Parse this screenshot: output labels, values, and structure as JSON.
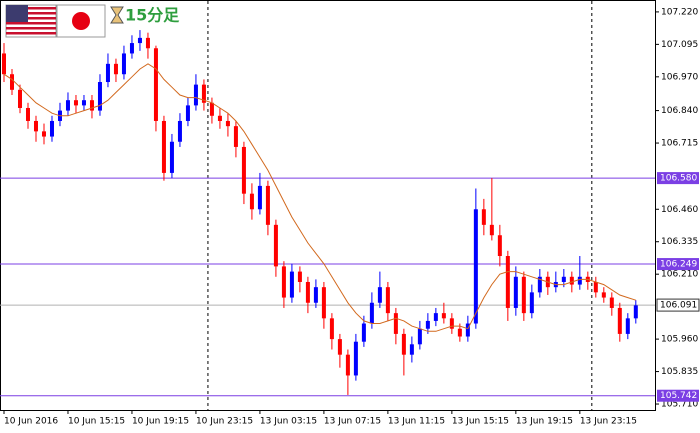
{
  "chart_data": {
    "type": "candlestick",
    "timeframe": "15分足",
    "xticks": [
      {
        "value": 0,
        "label": "10 Jun 2016"
      },
      {
        "value": 8,
        "label": "10 Jun 15:15"
      },
      {
        "value": 16,
        "label": "10 Jun 19:15"
      },
      {
        "value": 24,
        "label": "10 Jun 23:15"
      },
      {
        "value": 32,
        "label": "13 Jun 03:15"
      },
      {
        "value": 40,
        "label": "13 Jun 07:15"
      },
      {
        "value": 48,
        "label": "13 Jun 11:15"
      },
      {
        "value": 56,
        "label": "13 Jun 15:15"
      },
      {
        "value": 64,
        "label": "13 Jun 19:15"
      },
      {
        "value": 72,
        "label": "13 Jun 23:15"
      }
    ],
    "xlim": [
      -0.5,
      81.4
    ],
    "separators": [
      25.5,
      73.5
    ],
    "ylim": [
      105.687,
      107.262
    ],
    "yticks": [
      {
        "value": 107.22,
        "label": "107.220"
      },
      {
        "value": 107.095,
        "label": "107.095"
      },
      {
        "value": 106.97,
        "label": "106.970"
      },
      {
        "value": 106.84,
        "label": "106.840"
      },
      {
        "value": 106.715,
        "label": "106.715"
      },
      {
        "value": 106.46,
        "label": "106.460"
      },
      {
        "value": 106.335,
        "label": "106.335"
      },
      {
        "value": 106.21,
        "label": "106.210"
      },
      {
        "value": 105.96,
        "label": "105.960"
      },
      {
        "value": 105.835,
        "label": "105.835"
      },
      {
        "value": 105.71,
        "label": "105.710"
      }
    ],
    "levels": [
      {
        "value": 106.58,
        "label": "106.580"
      },
      {
        "value": 106.249,
        "label": "106.249"
      },
      {
        "value": 105.742,
        "label": "105.742"
      }
    ],
    "level_color": "#7b3fe4",
    "current_price": {
      "value": 106.091,
      "label": "106.091"
    },
    "up_color": "#0000ff",
    "down_color": "#ff0000",
    "ma_color": "#d2691e",
    "open": [
      107.06,
      106.98,
      106.92,
      106.85,
      106.8,
      106.76,
      106.74,
      106.8,
      106.84,
      106.88,
      106.86,
      106.88,
      106.84,
      106.95,
      107.02,
      106.98,
      107.06,
      107.1,
      107.12,
      107.08,
      106.8,
      106.6,
      106.72,
      106.8,
      106.86,
      106.94,
      106.87,
      106.82,
      106.8,
      106.78,
      106.7,
      106.52,
      106.46,
      106.55,
      106.4,
      106.24,
      106.12,
      106.22,
      106.18,
      106.1,
      106.16,
      106.04,
      105.96,
      105.9,
      105.82,
      105.95,
      106.02,
      106.1,
      106.16,
      106.06,
      105.98,
      105.9,
      105.94,
      106.0,
      106.03,
      106.06,
      106.04,
      106.0,
      105.97,
      106.02,
      106.46,
      106.4,
      106.36,
      106.28,
      106.08,
      106.2,
      106.06,
      106.14,
      106.2,
      106.16,
      106.18,
      106.2,
      106.17,
      106.2,
      106.18,
      106.14,
      106.12,
      106.08,
      105.98,
      106.04
    ],
    "high": [
      107.1,
      107.0,
      106.94,
      106.87,
      106.82,
      106.79,
      106.82,
      106.87,
      106.91,
      106.9,
      106.9,
      106.9,
      106.98,
      107.06,
      107.04,
      107.09,
      107.13,
      107.15,
      107.14,
      107.09,
      106.82,
      106.75,
      106.83,
      106.89,
      106.98,
      106.96,
      106.89,
      106.85,
      106.83,
      106.8,
      106.72,
      106.56,
      106.6,
      106.57,
      106.42,
      106.26,
      106.25,
      106.24,
      106.2,
      106.19,
      106.18,
      106.06,
      105.98,
      105.92,
      105.98,
      106.05,
      106.14,
      106.22,
      106.18,
      106.08,
      106.0,
      105.97,
      106.03,
      106.06,
      106.08,
      106.1,
      106.06,
      106.02,
      106.05,
      106.54,
      106.5,
      106.58,
      106.4,
      106.3,
      106.24,
      106.22,
      106.17,
      106.23,
      106.22,
      106.22,
      106.23,
      106.22,
      106.28,
      106.22,
      106.2,
      106.16,
      106.14,
      106.1,
      106.06,
      106.11
    ],
    "low": [
      106.95,
      106.9,
      106.83,
      106.77,
      106.72,
      106.71,
      106.72,
      106.78,
      106.82,
      106.83,
      106.84,
      106.81,
      106.82,
      106.93,
      106.95,
      106.96,
      107.04,
      107.07,
      107.04,
      106.76,
      106.57,
      106.58,
      106.7,
      106.78,
      106.84,
      106.84,
      106.79,
      106.77,
      106.74,
      106.66,
      106.48,
      106.42,
      106.44,
      106.36,
      106.2,
      106.08,
      106.1,
      106.14,
      106.06,
      106.08,
      106.0,
      105.92,
      105.85,
      105.745,
      105.8,
      105.93,
      106.0,
      106.08,
      106.03,
      105.94,
      105.82,
      105.87,
      105.92,
      105.98,
      106.01,
      106.02,
      105.98,
      105.95,
      105.95,
      106.0,
      106.36,
      106.34,
      106.24,
      106.03,
      106.05,
      106.03,
      106.04,
      106.12,
      106.13,
      106.14,
      106.16,
      106.14,
      106.15,
      106.15,
      106.12,
      106.1,
      106.05,
      105.95,
      105.96,
      106.02
    ],
    "close": [
      106.98,
      106.92,
      106.85,
      106.8,
      106.76,
      106.74,
      106.8,
      106.84,
      106.88,
      106.86,
      106.88,
      106.84,
      106.95,
      107.02,
      106.98,
      107.06,
      107.1,
      107.12,
      107.08,
      106.8,
      106.6,
      106.72,
      106.8,
      106.86,
      106.94,
      106.87,
      106.82,
      106.8,
      106.78,
      106.7,
      106.52,
      106.46,
      106.55,
      106.4,
      106.24,
      106.12,
      106.22,
      106.18,
      106.1,
      106.16,
      106.04,
      105.96,
      105.9,
      105.82,
      105.95,
      106.02,
      106.1,
      106.16,
      106.06,
      105.98,
      105.9,
      105.94,
      106.0,
      106.03,
      106.06,
      106.04,
      106.0,
      105.97,
      106.02,
      106.46,
      106.4,
      106.36,
      106.28,
      106.08,
      106.2,
      106.06,
      106.14,
      106.2,
      106.16,
      106.18,
      106.2,
      106.17,
      106.2,
      106.18,
      106.14,
      106.12,
      106.08,
      105.98,
      106.04,
      106.09
    ],
    "ma": [
      106.98,
      106.96,
      106.93,
      106.9,
      106.87,
      106.85,
      106.83,
      106.82,
      106.82,
      106.83,
      106.84,
      106.85,
      106.86,
      106.88,
      106.91,
      106.94,
      106.97,
      107.0,
      107.02,
      107.0,
      106.96,
      106.93,
      106.9,
      106.89,
      106.89,
      106.88,
      106.87,
      106.85,
      106.83,
      106.8,
      106.76,
      106.71,
      106.66,
      106.61,
      106.55,
      106.49,
      106.43,
      106.38,
      106.33,
      106.29,
      106.25,
      106.2,
      106.15,
      106.1,
      106.06,
      106.03,
      106.02,
      106.02,
      106.03,
      106.04,
      106.03,
      106.01,
      106.0,
      105.99,
      105.99,
      106.0,
      106.01,
      106.01,
      106.0,
      106.06,
      106.12,
      106.17,
      106.21,
      106.22,
      106.22,
      106.21,
      106.2,
      106.19,
      106.18,
      106.17,
      106.17,
      106.18,
      106.19,
      106.19,
      106.18,
      106.17,
      106.15,
      106.13,
      106.12,
      106.11
    ]
  }
}
